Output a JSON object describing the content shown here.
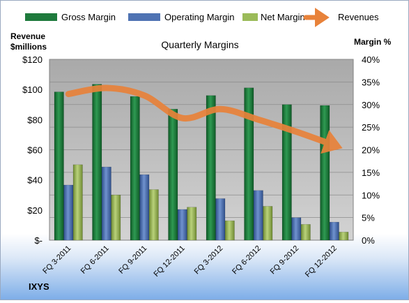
{
  "legend": {
    "gross": "Gross Margin",
    "operating": "Operating Margin",
    "net": "Net Margin",
    "revenues": "Revenues"
  },
  "left_axis": {
    "title_line1": "Revenue",
    "title_line2": "$millions"
  },
  "right_axis": {
    "title": "Margin %"
  },
  "company_label": "IXYS",
  "colors": {
    "gross": "#1e7a3c",
    "operating": "#4f73b3",
    "net": "#9bbb59",
    "revenues": "#e8823a",
    "plot_bg": "#bdbdbd"
  },
  "chart_data": {
    "type": "bar",
    "title": "Quarterly Margins",
    "categories": [
      "FQ 3-2011",
      "FQ 6-2011",
      "FQ 9-2011",
      "FQ 12-2011",
      "FQ 3-2012",
      "FQ 6-2012",
      "FQ 9-2012",
      "FQ 12-2012"
    ],
    "y_left": {
      "label": "Revenue $millions",
      "ylim": [
        0,
        120
      ],
      "ticks": [
        "$-",
        "$20",
        "$40",
        "$60",
        "$80",
        "$100",
        "$120"
      ]
    },
    "y_right": {
      "label": "Margin %",
      "ylim": [
        0,
        40
      ],
      "ticks": [
        "0%",
        "5%",
        "10%",
        "15%",
        "20%",
        "25%",
        "30%",
        "35%",
        "40%"
      ]
    },
    "grid": true,
    "legend_position": "top",
    "series": [
      {
        "name": "Gross Margin",
        "type": "bar",
        "axis": "right",
        "unit": "%",
        "values": [
          32.8,
          34.5,
          31.8,
          29.0,
          32.0,
          33.7,
          30.0,
          29.8
        ]
      },
      {
        "name": "Operating Margin",
        "type": "bar",
        "axis": "right",
        "unit": "%",
        "values": [
          12.2,
          16.2,
          14.5,
          6.8,
          9.2,
          11.0,
          5.0,
          4.0
        ]
      },
      {
        "name": "Net Margin",
        "type": "bar",
        "axis": "right",
        "unit": "%",
        "values": [
          16.7,
          10.0,
          11.2,
          7.3,
          4.3,
          7.5,
          3.5,
          1.8
        ]
      },
      {
        "name": "Revenues",
        "type": "line",
        "axis": "left",
        "unit": "$M",
        "values": [
          97,
          101,
          96,
          81,
          87,
          80,
          72,
          63
        ]
      }
    ]
  }
}
